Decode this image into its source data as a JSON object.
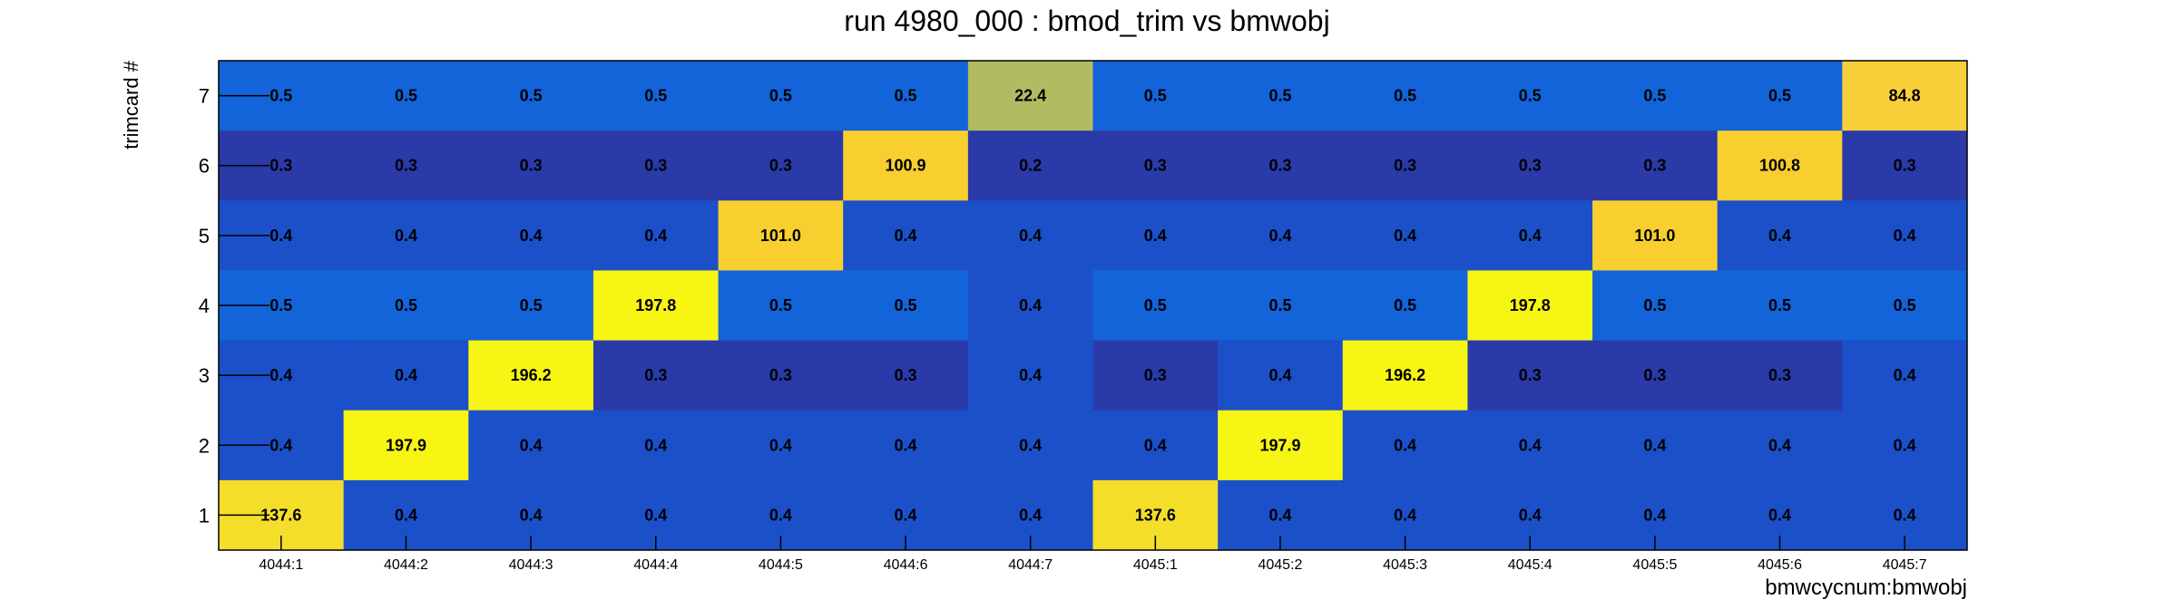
{
  "chart_data": {
    "type": "heatmap",
    "title": "run 4980_000 : bmod_trim vs bmwobj",
    "xlabel": "bmwcycnum:bmwobj",
    "ylabel": "trimcard #",
    "x_categories": [
      "4044:1",
      "4044:2",
      "4044:3",
      "4044:4",
      "4044:5",
      "4044:6",
      "4044:7",
      "4045:1",
      "4045:2",
      "4045:3",
      "4045:4",
      "4045:5",
      "4045:6",
      "4045:7"
    ],
    "y_categories": [
      "1",
      "2",
      "3",
      "4",
      "5",
      "6",
      "7"
    ],
    "rows": [
      {
        "y": "7",
        "values": [
          "0.5",
          "0.5",
          "0.5",
          "0.5",
          "0.5",
          "0.5",
          "22.4",
          "0.5",
          "0.5",
          "0.5",
          "0.5",
          "0.5",
          "0.5",
          "84.8"
        ]
      },
      {
        "y": "6",
        "values": [
          "0.3",
          "0.3",
          "0.3",
          "0.3",
          "0.3",
          "100.9",
          "0.2",
          "0.3",
          "0.3",
          "0.3",
          "0.3",
          "0.3",
          "100.8",
          "0.3"
        ]
      },
      {
        "y": "5",
        "values": [
          "0.4",
          "0.4",
          "0.4",
          "0.4",
          "101.0",
          "0.4",
          "0.4",
          "0.4",
          "0.4",
          "0.4",
          "0.4",
          "101.0",
          "0.4",
          "0.4"
        ]
      },
      {
        "y": "4",
        "values": [
          "0.5",
          "0.5",
          "0.5",
          "197.8",
          "0.5",
          "0.5",
          "0.4",
          "0.5",
          "0.5",
          "0.5",
          "197.8",
          "0.5",
          "0.5",
          "0.5"
        ]
      },
      {
        "y": "3",
        "values": [
          "0.4",
          "0.4",
          "196.2",
          "0.3",
          "0.3",
          "0.3",
          "0.4",
          "0.3",
          "0.4",
          "196.2",
          "0.3",
          "0.3",
          "0.3",
          "0.4"
        ]
      },
      {
        "y": "2",
        "values": [
          "0.4",
          "197.9",
          "0.4",
          "0.4",
          "0.4",
          "0.4",
          "0.4",
          "0.4",
          "197.9",
          "0.4",
          "0.4",
          "0.4",
          "0.4",
          "0.4"
        ]
      },
      {
        "y": "1",
        "values": [
          "137.6",
          "0.4",
          "0.4",
          "0.4",
          "0.4",
          "0.4",
          "0.4",
          "137.6",
          "0.4",
          "0.4",
          "0.4",
          "0.4",
          "0.4",
          "0.4"
        ]
      }
    ],
    "legend": "none",
    "grid": false
  }
}
